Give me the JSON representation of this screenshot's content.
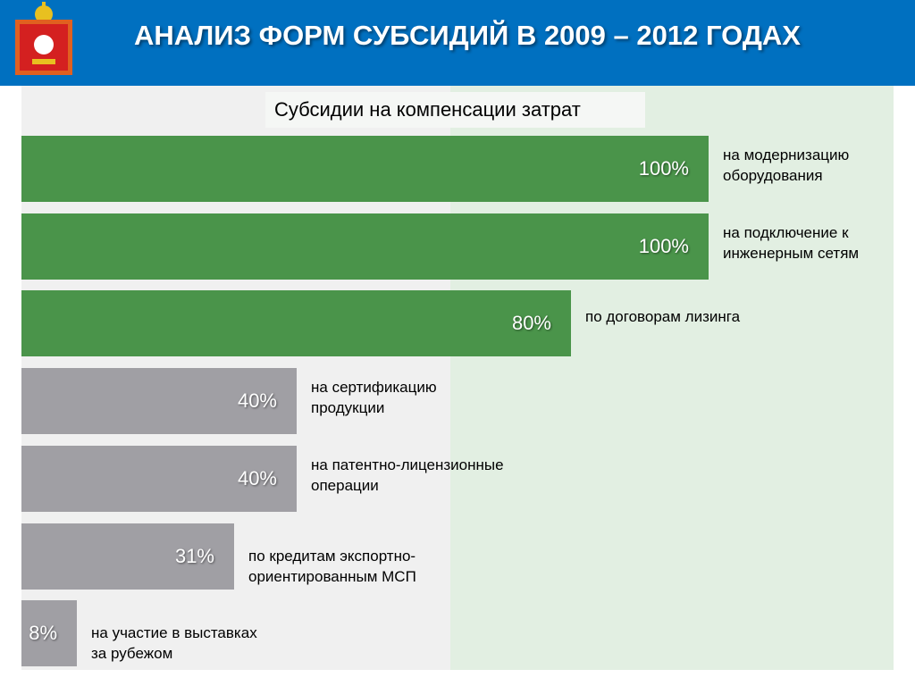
{
  "header": {
    "title": "АНАЛИЗ ФОРМ СУБСИДИЙ В 2009 – 2012 ГОДАХ",
    "logo": "moscow-oblast-coat-of-arms"
  },
  "colors": {
    "header": "#0070c0",
    "green": "#4a944a",
    "gray": "#a09fa4"
  },
  "chart_data": {
    "type": "bar",
    "orientation": "horizontal",
    "title": "Субсидии на компенсации затрат",
    "xlim": [
      0,
      100
    ],
    "unit": "%",
    "categories": [
      "на модернизацию\nоборудования",
      "на подключение к\nинженерным сетям",
      "по договорам лизинга",
      "на сертификацию\nпродукции",
      "на патентно-лицензионные\nоперации",
      "по кредитам экспортно-\nориентированным МСП",
      "на участие в выставках\nза рубежом"
    ],
    "values": [
      100,
      100,
      80,
      40,
      40,
      31,
      8
    ],
    "labels": [
      "100%",
      "100%",
      "80%",
      "40%",
      "40%",
      "31%",
      "8%"
    ],
    "bar_colors": [
      "green",
      "green",
      "green",
      "gray",
      "gray",
      "gray",
      "gray"
    ]
  }
}
